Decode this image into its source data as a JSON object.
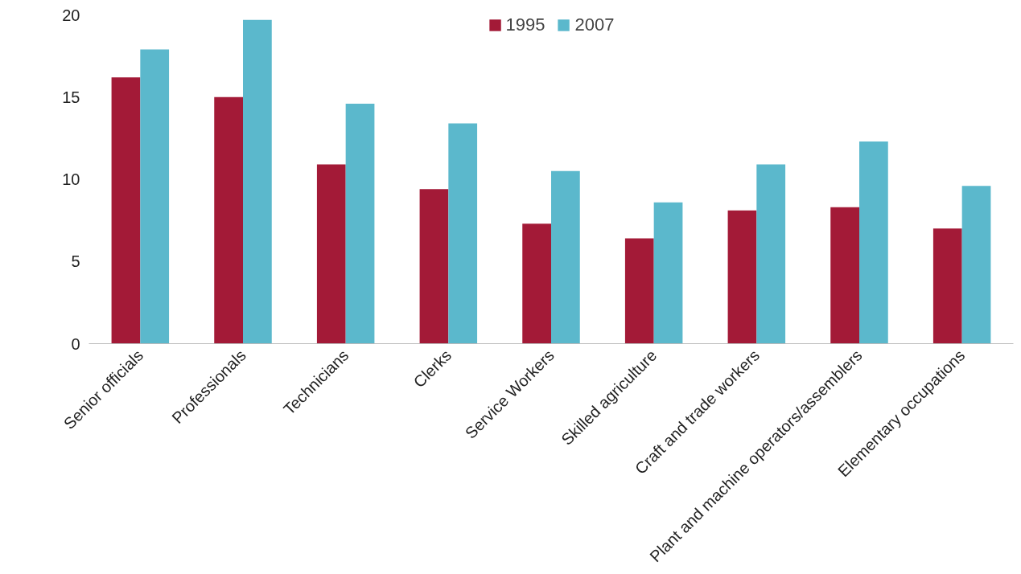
{
  "chart_data": {
    "type": "bar",
    "categories": [
      "Senior officials",
      "Professionals",
      "Technicians",
      "Clerks",
      "Service Workers",
      "Skilled agriculture",
      "Craft and trade workers",
      "Plant and machine operators/assemblers",
      "Elementary occupations"
    ],
    "series": [
      {
        "name": "1995",
        "color": "#a31a37",
        "values": [
          16.2,
          15.0,
          10.9,
          9.4,
          7.3,
          6.4,
          8.1,
          8.3,
          7.0
        ]
      },
      {
        "name": "2007",
        "color": "#5bb8cc",
        "values": [
          17.9,
          19.7,
          14.6,
          13.4,
          10.5,
          8.6,
          10.9,
          12.3,
          9.6
        ]
      }
    ],
    "ylim": [
      0,
      20
    ],
    "yticks": [
      0,
      5,
      10,
      15,
      20
    ],
    "grid": false,
    "legend": "top"
  }
}
